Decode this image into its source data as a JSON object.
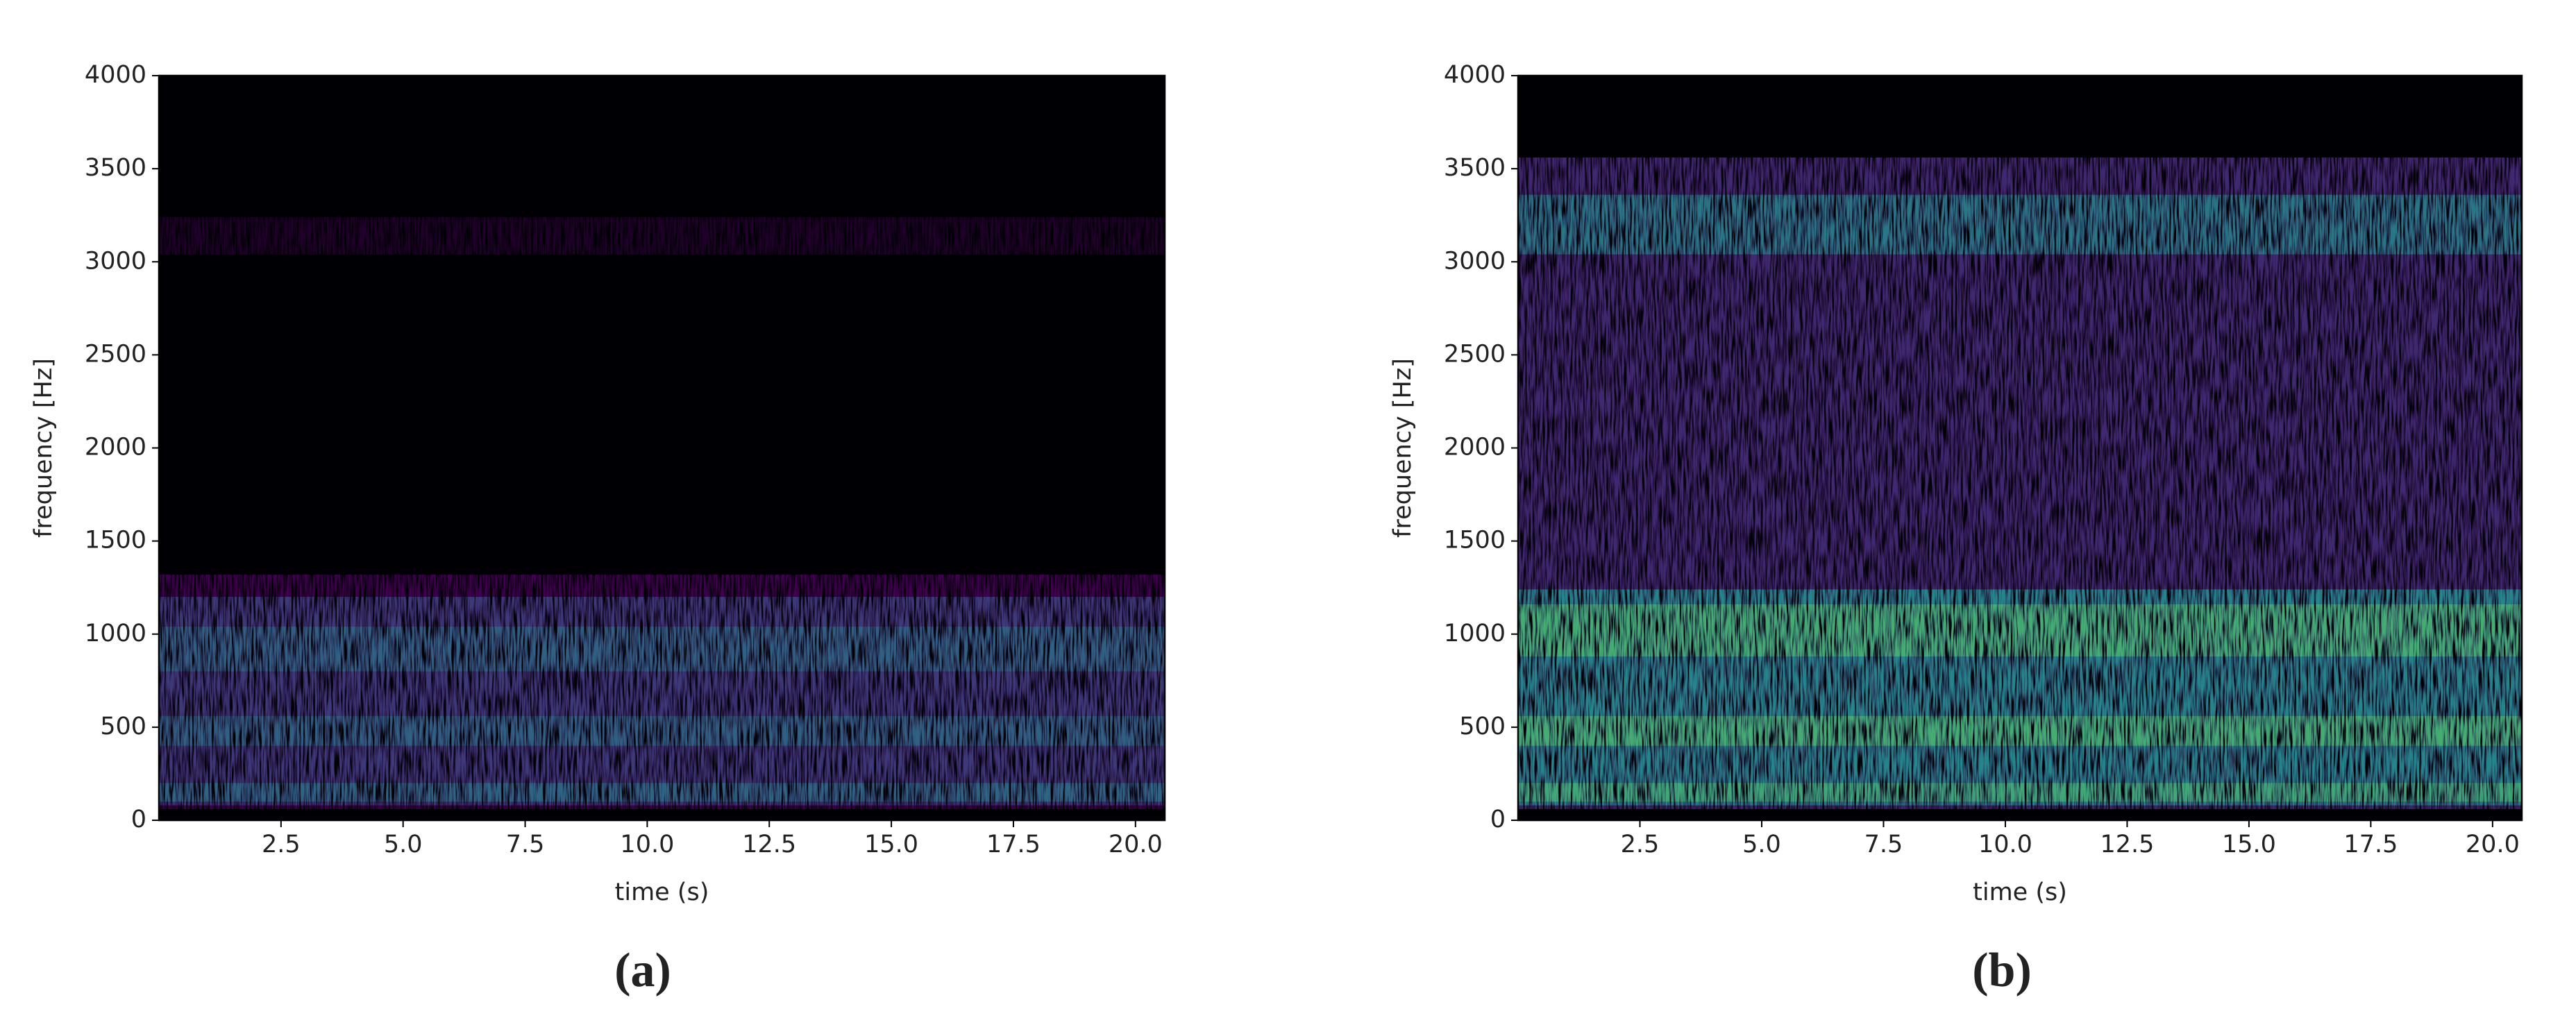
{
  "chart_data": [
    {
      "type": "spectrogram",
      "caption": "(a)",
      "xlabel": "time (s)",
      "ylabel": "frequency [Hz]",
      "xlim": [
        0,
        20.6
      ],
      "ylim": [
        0,
        4000
      ],
      "xticks": [
        2.5,
        {
          "value": 5,
          "label": "5.0"
        },
        7.5,
        {
          "value": 10,
          "label": "10.0"
        },
        12.5,
        {
          "value": 15,
          "label": "15.0"
        },
        17.5,
        {
          "value": 20,
          "label": "20.0"
        }
      ],
      "yticks": [
        0,
        500,
        1000,
        1500,
        2000,
        2500,
        3000,
        3500,
        4000
      ],
      "colormap": [
        "#000004",
        "#440154",
        "#3b528b",
        "#21908d",
        "#5dc963",
        "#fde725"
      ]
    },
    {
      "type": "spectrogram",
      "caption": "(b)",
      "xlabel": "time (s)",
      "ylabel": "frequency [Hz]",
      "xlim": [
        0,
        20.6
      ],
      "ylim": [
        0,
        4000
      ],
      "xticks": [
        2.5,
        {
          "value": 5,
          "label": "5.0"
        },
        7.5,
        {
          "value": 10,
          "label": "10.0"
        },
        12.5,
        {
          "value": 15,
          "label": "15.0"
        },
        17.5,
        {
          "value": 20,
          "label": "20.0"
        }
      ],
      "yticks": [
        0,
        500,
        1000,
        1500,
        2000,
        2500,
        3000,
        3500,
        4000
      ],
      "colormap": [
        "#000004",
        "#440154",
        "#3b528b",
        "#21908d",
        "#5dc963",
        "#fde725"
      ]
    }
  ]
}
